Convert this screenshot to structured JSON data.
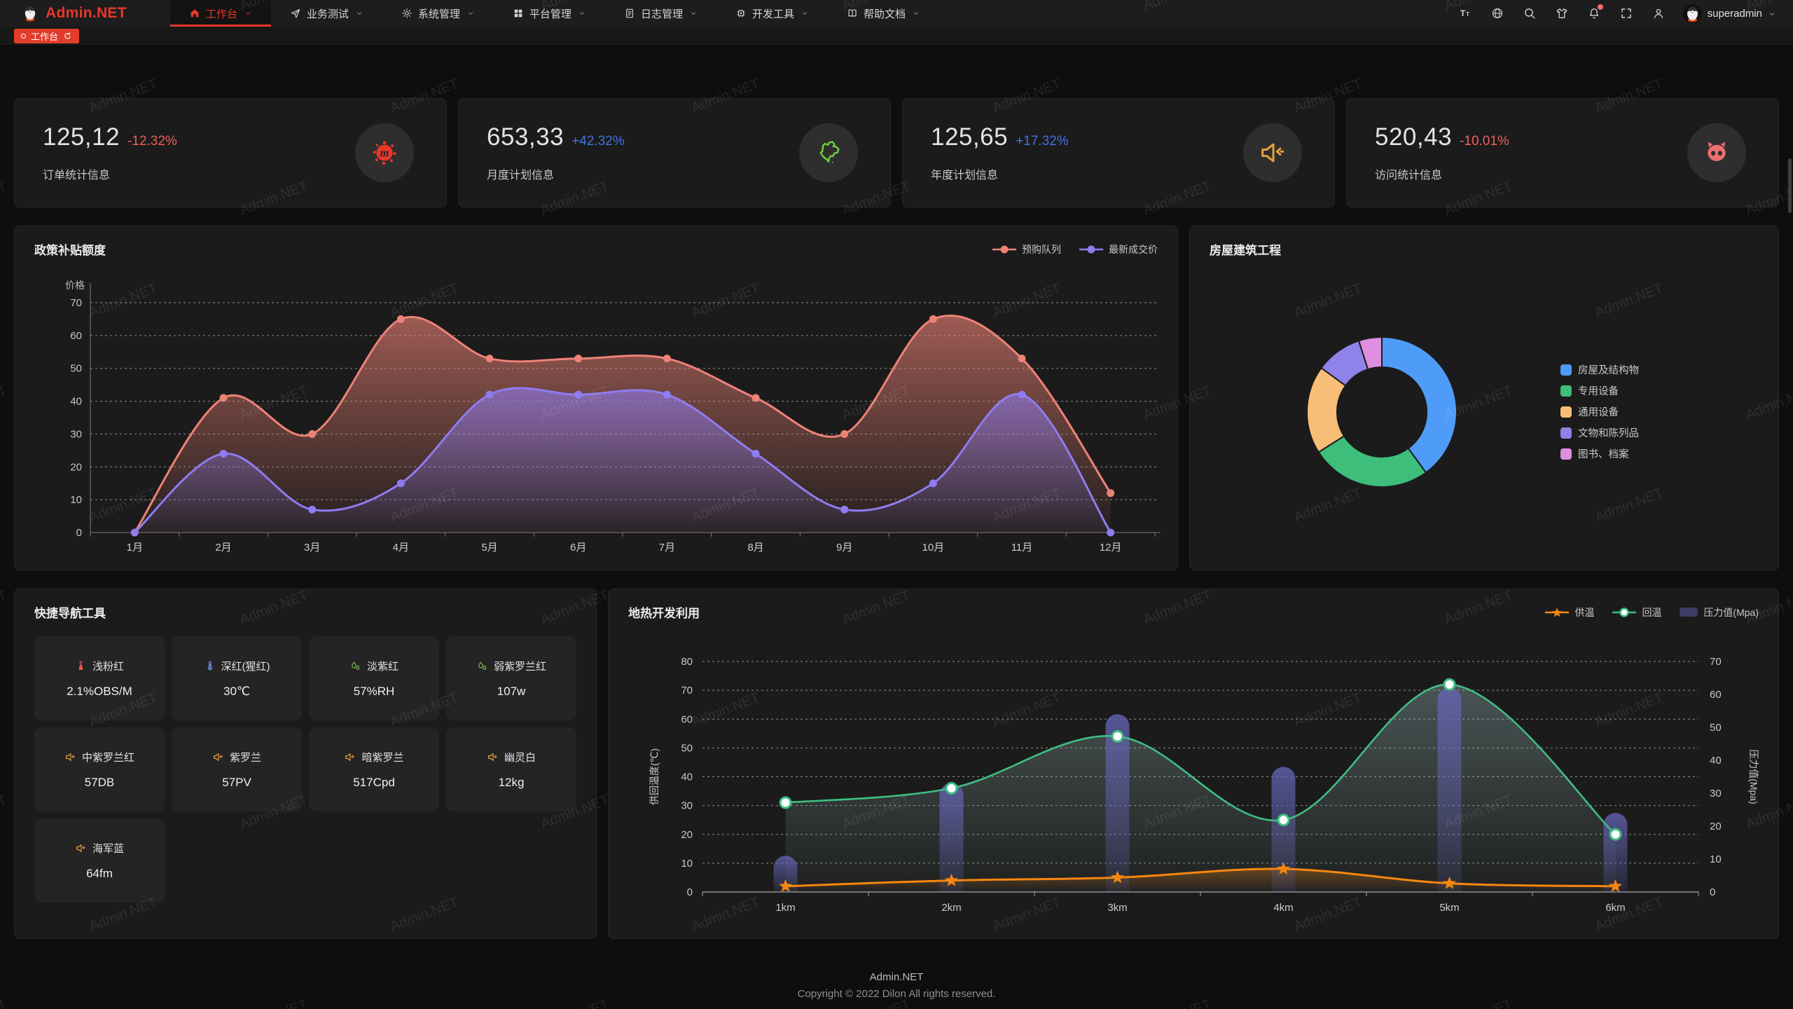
{
  "brand": {
    "name": "Admin.NET",
    "accent": "#e8372a"
  },
  "header": {
    "menu": [
      {
        "id": "workbench",
        "label": "工作台",
        "icon": "home-icon",
        "active": true
      },
      {
        "id": "business-test",
        "label": "业务测试",
        "icon": "send-icon",
        "active": false
      },
      {
        "id": "system-manage",
        "label": "系统管理",
        "icon": "gear-icon",
        "active": false
      },
      {
        "id": "platform-manage",
        "label": "平台管理",
        "icon": "grid-icon",
        "active": false
      },
      {
        "id": "log-manage",
        "label": "日志管理",
        "icon": "log-icon",
        "active": false
      },
      {
        "id": "dev-tools",
        "label": "开发工具",
        "icon": "chip-icon",
        "active": false
      },
      {
        "id": "help-docs",
        "label": "帮助文档",
        "icon": "book-icon",
        "active": false
      }
    ],
    "tools": [
      {
        "id": "font-size",
        "icon": "font-size-icon",
        "badge": false
      },
      {
        "id": "language",
        "icon": "language-icon",
        "badge": false
      },
      {
        "id": "search",
        "icon": "search-icon",
        "badge": false
      },
      {
        "id": "theme",
        "icon": "theme-icon",
        "badge": false
      },
      {
        "id": "notification",
        "icon": "bell-icon",
        "badge": true
      },
      {
        "id": "fullscreen",
        "icon": "fullscreen-icon",
        "badge": false
      },
      {
        "id": "profile",
        "icon": "person-icon",
        "badge": false
      }
    ],
    "user": {
      "name": "superadmin"
    }
  },
  "tabbar": {
    "active_tab": "工作台"
  },
  "stat_cards": [
    {
      "value": "125,12",
      "delta": "-12.32%",
      "trend": "down",
      "label": "订单统计信息",
      "icon": "meetup-icon",
      "icon_color": "#e8372a"
    },
    {
      "value": "653,33",
      "delta": "+42.32%",
      "trend": "up",
      "label": "月度计划信息",
      "icon": "china-map-icon",
      "icon_color": "#6fcf3f"
    },
    {
      "value": "125,65",
      "delta": "+17.32%",
      "trend": "up",
      "label": "年度计划信息",
      "icon": "speaker-icon",
      "icon_color": "#e6a23c"
    },
    {
      "value": "520,43",
      "delta": "-10.01%",
      "trend": "down",
      "label": "访问统计信息",
      "icon": "octocat-icon",
      "icon_color": "#ee6f6f"
    }
  ],
  "quick_nav": {
    "title": "快捷导航工具",
    "items": [
      {
        "name": "浅粉红",
        "value": "2.1%OBS/M",
        "icon": "chimney-icon",
        "icon_color": "#e25a52"
      },
      {
        "name": "深红(猩红)",
        "value": "30℃",
        "icon": "thermometer-icon",
        "icon_color": "#6e96f0"
      },
      {
        "name": "淡紫红",
        "value": "57%RH",
        "icon": "humidity-icon",
        "icon_color": "#7dc855"
      },
      {
        "name": "弱紫罗兰红",
        "value": "107w",
        "icon": "humidity-icon",
        "icon_color": "#7dc855"
      },
      {
        "name": "中紫罗兰红",
        "value": "57DB",
        "icon": "speaker-icon",
        "icon_color": "#e6a23c"
      },
      {
        "name": "紫罗兰",
        "value": "57PV",
        "icon": "speaker-icon",
        "icon_color": "#e6a23c"
      },
      {
        "name": "暗紫罗兰",
        "value": "517Cpd",
        "icon": "speaker-icon",
        "icon_color": "#e6a23c"
      },
      {
        "name": "幽灵白",
        "value": "12kg",
        "icon": "speaker-icon",
        "icon_color": "#e6a23c"
      },
      {
        "name": "海军蓝",
        "value": "64fm",
        "icon": "speaker-icon",
        "icon_color": "#e6a23c"
      }
    ]
  },
  "chart_data": [
    {
      "id": "policy-chart",
      "type": "area",
      "title": "政策补贴额度",
      "ylabel": "价格",
      "categories": [
        "1月",
        "2月",
        "3月",
        "4月",
        "5月",
        "6月",
        "7月",
        "8月",
        "9月",
        "10月",
        "11月",
        "12月"
      ],
      "ylim": [
        0,
        70
      ],
      "ytick_step": 10,
      "grid": "dashed-horizontal",
      "legend_position": "top-right",
      "series": [
        {
          "name": "预购队列",
          "color": "#ee8276",
          "values": [
            0,
            41,
            30,
            65,
            53,
            53,
            53,
            41,
            30,
            65,
            53,
            12
          ]
        },
        {
          "name": "最新成交价",
          "color": "#8f7cf0",
          "values": [
            0,
            24,
            7,
            15,
            42,
            42,
            42,
            24,
            7,
            15,
            42,
            0
          ]
        }
      ]
    },
    {
      "id": "building-donut",
      "type": "pie",
      "title": "房屋建筑工程",
      "inner_radius_ratio": 0.6,
      "legend_position": "right",
      "items": [
        {
          "name": "房屋及结构物",
          "value": 40,
          "color": "#4f9cf8"
        },
        {
          "name": "专用设备",
          "value": 26,
          "color": "#3dbe7b"
        },
        {
          "name": "通用设备",
          "value": 19,
          "color": "#f8be77"
        },
        {
          "name": "文物和陈列品",
          "value": 10,
          "color": "#8f82e8"
        },
        {
          "name": "图书、档案",
          "value": 5,
          "color": "#de8fdf"
        }
      ]
    },
    {
      "id": "geothermal-chart",
      "type": "mixed",
      "title": "地热开发利用",
      "categories": [
        "1km",
        "2km",
        "3km",
        "4km",
        "5km",
        "6km"
      ],
      "y_left": {
        "name": "供回温度(℃)",
        "min": 0,
        "max": 80,
        "step": 10
      },
      "y_right": {
        "name": "压力值(Mpa)",
        "min": 0,
        "max": 70,
        "step": 10
      },
      "legend_position": "top-right",
      "series": [
        {
          "name": "供温",
          "type": "line",
          "marker": "star",
          "axis": "left",
          "color": "#f6870f",
          "values": [
            2,
            4,
            5,
            8,
            3,
            2
          ]
        },
        {
          "name": "回温",
          "type": "line",
          "marker": "circle",
          "axis": "left",
          "color": "#3fbe82",
          "values": [
            31,
            36,
            54,
            25,
            72,
            20
          ]
        },
        {
          "name": "压力值(Mpa)",
          "type": "bar",
          "marker": "rect",
          "axis": "right",
          "color": "#5c5caa",
          "values": [
            11,
            33,
            54,
            38,
            62,
            24
          ]
        }
      ]
    }
  ],
  "footer": {
    "app": "Admin.NET",
    "copyright": "Copyright © 2022 Dilon All rights reserved."
  },
  "watermark": "Admin.NET",
  "colors": {
    "up": "#4273de",
    "down": "#f15f5c",
    "card_bg": "#1b1b1b",
    "tile_bg": "#242424"
  }
}
